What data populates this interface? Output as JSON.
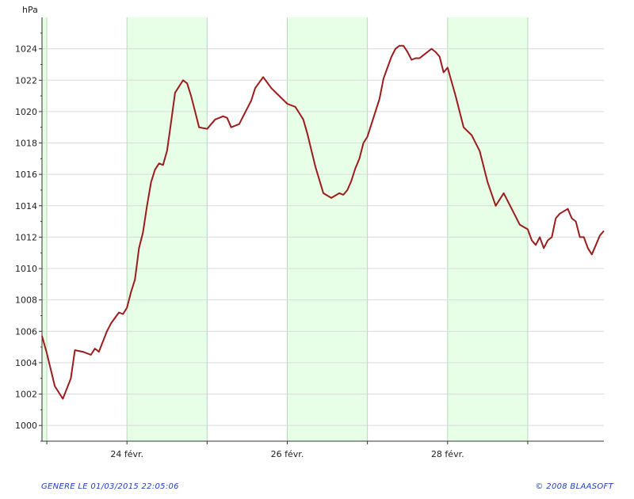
{
  "chart_data": {
    "type": "line",
    "ylabel": "hPa",
    "ylim": [
      999,
      1026
    ],
    "yticks": [
      1000,
      1002,
      1004,
      1006,
      1008,
      1010,
      1012,
      1014,
      1016,
      1018,
      1020,
      1022,
      1024
    ],
    "x_unit": "days since 23 févr. 00:00",
    "xlim": [
      -0.06,
      6.95
    ],
    "x_tick_labels": [
      {
        "x": 1,
        "label": "24 févr."
      },
      {
        "x": 3,
        "label": "26 févr."
      },
      {
        "x": 5,
        "label": "28 févr."
      }
    ],
    "x_minor_ticks": [
      0,
      2,
      4,
      6
    ],
    "shaded_bands": [
      [
        -0.06,
        0.0
      ],
      [
        1,
        2
      ],
      [
        3,
        4
      ],
      [
        5,
        6
      ]
    ],
    "grid": true,
    "series": [
      {
        "color": "#9b1c1c",
        "x": [
          -0.06,
          0.0,
          0.1,
          0.2,
          0.3,
          0.35,
          0.45,
          0.55,
          0.6,
          0.65,
          0.75,
          0.8,
          0.9,
          0.95,
          1.0,
          1.05,
          1.1,
          1.15,
          1.2,
          1.25,
          1.3,
          1.35,
          1.4,
          1.45,
          1.5,
          1.55,
          1.6,
          1.7,
          1.75,
          1.8,
          1.85,
          1.9,
          2.0,
          2.1,
          2.2,
          2.25,
          2.3,
          2.4,
          2.5,
          2.55,
          2.6,
          2.7,
          2.8,
          2.9,
          3.0,
          3.1,
          3.2,
          3.25,
          3.35,
          3.45,
          3.55,
          3.65,
          3.7,
          3.75,
          3.8,
          3.85,
          3.9,
          3.95,
          4.0,
          4.05,
          4.15,
          4.2,
          4.25,
          4.3,
          4.35,
          4.4,
          4.45,
          4.5,
          4.55,
          4.6,
          4.65,
          4.7,
          4.8,
          4.85,
          4.9,
          4.95,
          5.0,
          5.1,
          5.2,
          5.3,
          5.4,
          5.5,
          5.6,
          5.7,
          5.8,
          5.9,
          6.0,
          6.05,
          6.1,
          6.15,
          6.2,
          6.25,
          6.3,
          6.35,
          6.4,
          6.5,
          6.55,
          6.6,
          6.65,
          6.7,
          6.75,
          6.8,
          6.85,
          6.9,
          6.95
        ],
        "y": [
          1005.7,
          1004.6,
          1002.5,
          1001.7,
          1003.0,
          1004.8,
          1004.7,
          1004.5,
          1004.9,
          1004.7,
          1006.0,
          1006.5,
          1007.2,
          1007.1,
          1007.5,
          1008.5,
          1009.3,
          1011.3,
          1012.3,
          1014.0,
          1015.5,
          1016.3,
          1016.7,
          1016.6,
          1017.5,
          1019.3,
          1021.2,
          1022.0,
          1021.8,
          1021.0,
          1020.0,
          1019.0,
          1018.9,
          1019.5,
          1019.7,
          1019.6,
          1019.0,
          1019.2,
          1020.2,
          1020.7,
          1021.5,
          1022.2,
          1021.5,
          1021.0,
          1020.5,
          1020.3,
          1019.5,
          1018.6,
          1016.5,
          1014.8,
          1014.5,
          1014.8,
          1014.7,
          1015.0,
          1015.6,
          1016.4,
          1017.0,
          1018.0,
          1018.4,
          1019.2,
          1020.8,
          1022.1,
          1022.8,
          1023.5,
          1024.0,
          1024.2,
          1024.2,
          1023.8,
          1023.3,
          1023.4,
          1023.4,
          1023.6,
          1024.0,
          1023.8,
          1023.5,
          1022.5,
          1022.8,
          1021.0,
          1019.0,
          1018.5,
          1017.5,
          1015.5,
          1014.0,
          1014.8,
          1013.8,
          1012.8,
          1012.5,
          1011.8,
          1011.5,
          1012.0,
          1011.3,
          1011.8,
          1012.0,
          1013.2,
          1013.5,
          1013.8,
          1013.2,
          1013.0,
          1012.0,
          1012.0,
          1011.3,
          1010.9,
          1011.5,
          1012.1,
          1012.4
        ]
      }
    ]
  },
  "footer": {
    "generated": "GENERE LE 01/03/2015 22:05:06",
    "copyright": "© 2008 BLAASOFT"
  },
  "colors": {
    "band_fill": "#e6ffe6",
    "grid": "#d9d9d9",
    "band_edge": "#b8d9b8",
    "line": "#9b1c1c",
    "footer_text": "#1f3fbf"
  }
}
